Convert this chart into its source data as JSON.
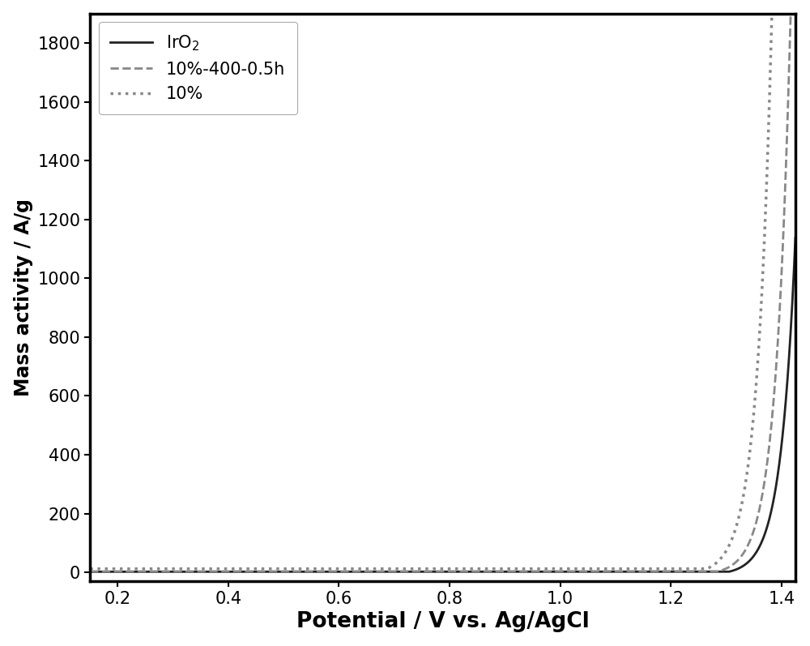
{
  "title": "",
  "xlabel": "Potential / V vs. Ag/AgCl",
  "ylabel": "Mass activity / A/g",
  "xlim": [
    0.15,
    1.425
  ],
  "ylim": [
    -30,
    1900
  ],
  "xticks": [
    0.2,
    0.4,
    0.6,
    0.8,
    1.0,
    1.2,
    1.4
  ],
  "yticks": [
    0,
    200,
    400,
    600,
    800,
    1000,
    1200,
    1400,
    1600,
    1800
  ],
  "background_color": "#ffffff",
  "lines": [
    {
      "label": "IrO$_2$",
      "color": "#222222",
      "linestyle": "solid",
      "linewidth": 2.0,
      "onset": 1.305,
      "exp_rate": 38.0,
      "base_value": 2.0
    },
    {
      "label": "10%-400-0.5h",
      "color": "#888888",
      "linestyle": "dashed",
      "linewidth": 2.0,
      "onset": 1.285,
      "exp_rate": 38.0,
      "base_value": 3.0
    },
    {
      "label": "10%",
      "color": "#888888",
      "linestyle": "dotted",
      "linewidth": 2.5,
      "onset": 1.265,
      "exp_rate": 38.0,
      "base_value": 12.0
    }
  ],
  "legend_loc": "upper left",
  "legend_fontsize": 15,
  "tick_fontsize": 15,
  "xlabel_fontsize": 19,
  "ylabel_fontsize": 17
}
